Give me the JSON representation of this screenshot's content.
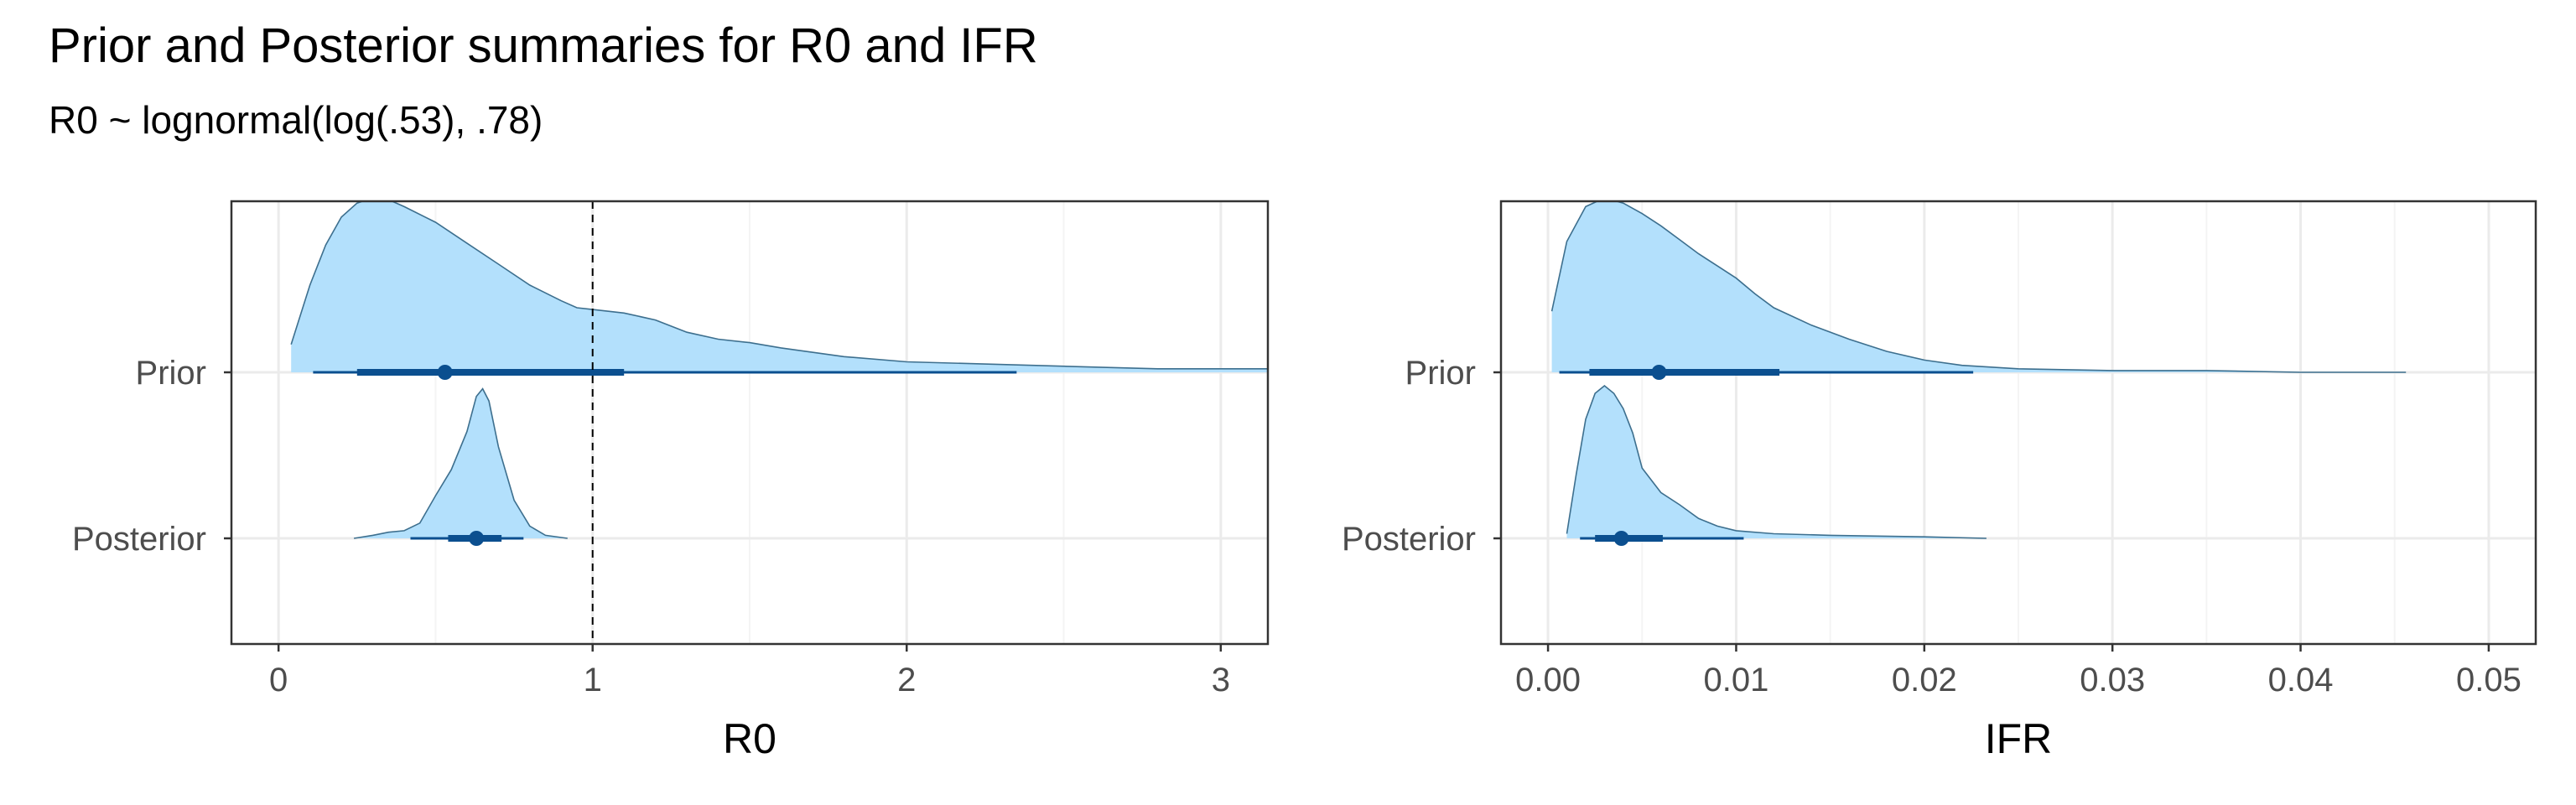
{
  "figure": {
    "title": "Prior and Posterior summaries for R0 and IFR",
    "subtitle": "R0 ~ lognormal(log(.53), .78)"
  },
  "colors": {
    "density_fill": "#b3e0fc",
    "density_outline": "#3d6f8e",
    "interval": "#0b4f8f",
    "grid_major": "#ebebeb",
    "grid_minor": "#f4f4f4",
    "panel_border": "#333333",
    "axis_text": "#4d4d4d",
    "reference_line": "#000000"
  },
  "chart_data": [
    {
      "type": "halfeye",
      "id": "r0",
      "xlabel": "R0",
      "xlim": [
        -0.15,
        3.15
      ],
      "x_ticks": [
        0,
        1,
        2,
        3
      ],
      "x_tick_labels": [
        "0",
        "1",
        "2",
        "3"
      ],
      "x_minor": [
        0.5,
        1.5,
        2.5
      ],
      "reference_line": 1,
      "categories": [
        "Prior",
        "Posterior"
      ],
      "series": [
        {
          "name": "Prior",
          "density": [
            [
              0.04,
              0.16
            ],
            [
              0.1,
              0.5
            ],
            [
              0.15,
              0.73
            ],
            [
              0.2,
              0.89
            ],
            [
              0.25,
              0.97
            ],
            [
              0.3,
              1.0
            ],
            [
              0.35,
              0.99
            ],
            [
              0.4,
              0.95
            ],
            [
              0.5,
              0.86
            ],
            [
              0.6,
              0.74
            ],
            [
              0.7,
              0.62
            ],
            [
              0.8,
              0.5
            ],
            [
              0.9,
              0.41
            ],
            [
              0.95,
              0.37
            ],
            [
              1.0,
              0.36
            ],
            [
              1.1,
              0.34
            ],
            [
              1.2,
              0.3
            ],
            [
              1.3,
              0.23
            ],
            [
              1.4,
              0.19
            ],
            [
              1.5,
              0.17
            ],
            [
              1.6,
              0.14
            ],
            [
              1.8,
              0.09
            ],
            [
              2.0,
              0.06
            ],
            [
              2.2,
              0.05
            ],
            [
              2.4,
              0.04
            ],
            [
              2.6,
              0.03
            ],
            [
              2.8,
              0.02
            ],
            [
              3.0,
              0.02
            ],
            [
              3.15,
              0.02
            ]
          ],
          "point": 0.53,
          "interval_inner": [
            0.25,
            1.1
          ],
          "interval_outer": [
            0.11,
            2.35
          ]
        },
        {
          "name": "Posterior",
          "density": [
            [
              0.24,
              0.0
            ],
            [
              0.3,
              0.02
            ],
            [
              0.35,
              0.04
            ],
            [
              0.4,
              0.05
            ],
            [
              0.45,
              0.1
            ],
            [
              0.5,
              0.28
            ],
            [
              0.55,
              0.45
            ],
            [
              0.6,
              0.7
            ],
            [
              0.63,
              0.93
            ],
            [
              0.65,
              0.98
            ],
            [
              0.67,
              0.9
            ],
            [
              0.7,
              0.6
            ],
            [
              0.75,
              0.25
            ],
            [
              0.8,
              0.08
            ],
            [
              0.85,
              0.02
            ],
            [
              0.92,
              0.0
            ]
          ],
          "point": 0.63,
          "interval_inner": [
            0.54,
            0.71
          ],
          "interval_outer": [
            0.42,
            0.78
          ]
        }
      ]
    },
    {
      "type": "halfeye",
      "id": "ifr",
      "xlabel": "IFR",
      "xlim": [
        -0.0025,
        0.0525
      ],
      "x_ticks": [
        0.0,
        0.01,
        0.02,
        0.03,
        0.04,
        0.05
      ],
      "x_tick_labels": [
        "0.00",
        "0.01",
        "0.02",
        "0.03",
        "0.04",
        "0.05"
      ],
      "x_minor": [
        0.005,
        0.015,
        0.025,
        0.035,
        0.045
      ],
      "categories": [
        "Prior",
        "Posterior"
      ],
      "series": [
        {
          "name": "Prior",
          "density": [
            [
              0.0002,
              0.35
            ],
            [
              0.001,
              0.75
            ],
            [
              0.002,
              0.95
            ],
            [
              0.003,
              1.0
            ],
            [
              0.004,
              0.97
            ],
            [
              0.005,
              0.91
            ],
            [
              0.006,
              0.84
            ],
            [
              0.007,
              0.76
            ],
            [
              0.008,
              0.68
            ],
            [
              0.009,
              0.61
            ],
            [
              0.01,
              0.54
            ],
            [
              0.011,
              0.45
            ],
            [
              0.012,
              0.37
            ],
            [
              0.014,
              0.27
            ],
            [
              0.016,
              0.19
            ],
            [
              0.018,
              0.12
            ],
            [
              0.02,
              0.07
            ],
            [
              0.022,
              0.04
            ],
            [
              0.025,
              0.02
            ],
            [
              0.03,
              0.01
            ],
            [
              0.035,
              0.01
            ],
            [
              0.04,
              0.0
            ],
            [
              0.0456,
              0.0
            ]
          ],
          "point": 0.0059,
          "interval_inner": [
            0.0022,
            0.0123
          ],
          "interval_outer": [
            0.0006,
            0.0226
          ]
        },
        {
          "name": "Posterior",
          "density": [
            [
              0.001,
              0.03
            ],
            [
              0.0015,
              0.42
            ],
            [
              0.002,
              0.78
            ],
            [
              0.0025,
              0.95
            ],
            [
              0.003,
              1.0
            ],
            [
              0.0035,
              0.95
            ],
            [
              0.004,
              0.85
            ],
            [
              0.0045,
              0.69
            ],
            [
              0.005,
              0.46
            ],
            [
              0.006,
              0.3
            ],
            [
              0.007,
              0.22
            ],
            [
              0.008,
              0.13
            ],
            [
              0.009,
              0.08
            ],
            [
              0.01,
              0.05
            ],
            [
              0.012,
              0.03
            ],
            [
              0.015,
              0.02
            ],
            [
              0.02,
              0.01
            ],
            [
              0.0233,
              0.0
            ]
          ],
          "point": 0.0039,
          "interval_inner": [
            0.0025,
            0.0061
          ],
          "interval_outer": [
            0.0017,
            0.0104
          ]
        }
      ]
    }
  ]
}
